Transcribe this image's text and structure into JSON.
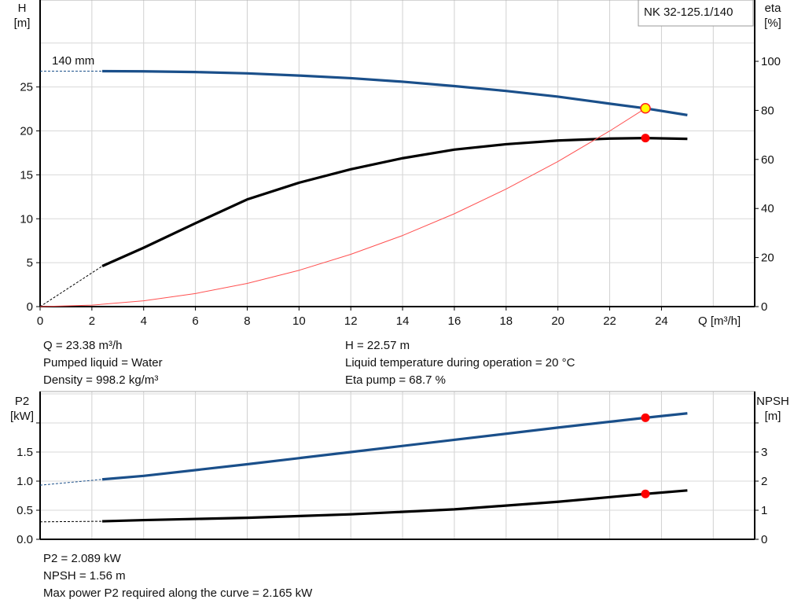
{
  "chart_data": [
    {
      "type": "line",
      "id": "head-chart",
      "title": "NK 32-125.1/140",
      "xlabel": "Q [m³/h]",
      "ylabel_left": "H\n[m]",
      "ylabel_right": "eta\n[%]",
      "xlim": [
        0,
        27.6
      ],
      "ylim_left": [
        0,
        34.9
      ],
      "ylim_right": [
        0,
        125
      ],
      "x_ticks": [
        0,
        2,
        4,
        6,
        8,
        10,
        12,
        14,
        16,
        18,
        20,
        22,
        24
      ],
      "y_ticks_left": [
        0,
        5,
        10,
        15,
        20,
        25
      ],
      "y_ticks_right": [
        0,
        20,
        40,
        60,
        80,
        100
      ],
      "grid": true,
      "curve_label": "140 mm",
      "series": [
        {
          "key": "H",
          "axis": "left",
          "color": "#1a4f8a",
          "x": [
            2.4,
            4,
            6,
            8,
            10,
            12,
            14,
            16,
            18,
            20,
            22,
            23.38,
            25
          ],
          "y": [
            26.8,
            26.78,
            26.7,
            26.55,
            26.3,
            26.0,
            25.6,
            25.1,
            24.55,
            23.9,
            23.1,
            22.57,
            21.8
          ],
          "extrapolated": {
            "x": [
              0,
              2.4
            ],
            "y": [
              26.8,
              26.8
            ]
          }
        },
        {
          "key": "eta",
          "axis": "right",
          "color": "#000000",
          "x": [
            2.4,
            4,
            6,
            8,
            10,
            12,
            14,
            16,
            18,
            20,
            22,
            23.38,
            25
          ],
          "y": [
            16.5,
            24,
            34,
            43.7,
            50.5,
            56,
            60.5,
            64,
            66.2,
            67.7,
            68.5,
            68.7,
            68.4
          ],
          "extrapolated": {
            "x": [
              0,
              2.4
            ],
            "y": [
              0,
              16.5
            ]
          }
        },
        {
          "key": "system",
          "axis": "left",
          "color": "#ff5050",
          "x": [
            0,
            2,
            4,
            6,
            8,
            10,
            12,
            14,
            16,
            18,
            20,
            22,
            23.38
          ],
          "y": [
            0,
            0.165,
            0.66,
            1.49,
            2.64,
            4.13,
            5.95,
            8.09,
            10.57,
            13.38,
            16.52,
            19.99,
            22.57
          ]
        }
      ],
      "duty_points": [
        {
          "x": 23.38,
          "y": 22.57,
          "axis": "left",
          "style": "yellow"
        },
        {
          "x": 23.38,
          "y": 68.7,
          "axis": "right",
          "style": "red"
        }
      ]
    },
    {
      "type": "line",
      "id": "power-chart",
      "ylabel_left": "P2\n[kW]",
      "ylabel_right": "NPSH\n[m]",
      "xlim": [
        0,
        27.6
      ],
      "ylim_left": [
        0,
        2.54
      ],
      "ylim_right": [
        0,
        5.08
      ],
      "y_ticks_left": [
        "0.0",
        "0.5",
        "1.0",
        "1.5"
      ],
      "y_ticks_right": [
        0,
        1,
        2,
        3
      ],
      "grid": true,
      "series": [
        {
          "key": "P2",
          "axis": "left",
          "color": "#1a4f8a",
          "x": [
            2.4,
            4,
            8,
            12,
            16,
            20,
            23.38,
            25
          ],
          "y": [
            1.03,
            1.09,
            1.29,
            1.5,
            1.71,
            1.92,
            2.089,
            2.165
          ],
          "extrapolated": {
            "x": [
              0,
              2.4
            ],
            "y": [
              0.93,
              1.03
            ]
          }
        },
        {
          "key": "NPSH",
          "axis": "right",
          "color": "#000000",
          "x": [
            2.4,
            4,
            8,
            12,
            16,
            20,
            23.38,
            25
          ],
          "y": [
            0.62,
            0.66,
            0.74,
            0.86,
            1.03,
            1.29,
            1.56,
            1.68
          ],
          "extrapolated": {
            "x": [
              0,
              2.4
            ],
            "y": [
              0.6,
              0.62
            ]
          }
        }
      ],
      "duty_points": [
        {
          "x": 23.38,
          "y": 2.089,
          "axis": "left",
          "style": "red"
        },
        {
          "x": 23.38,
          "y": 1.56,
          "axis": "right",
          "style": "red"
        }
      ]
    }
  ],
  "info_top": {
    "q": "Q = 23.38 m³/h",
    "liquid": "Pumped liquid = Water",
    "density": "Density = 998.2 kg/m³",
    "h": "H = 22.57 m",
    "temp": "Liquid temperature during operation = 20 °C",
    "eta": "Eta pump = 68.7 %"
  },
  "info_bottom": {
    "p2": "P2 = 2.089 kW",
    "npsh": "NPSH = 1.56 m",
    "maxp2": "Max power P2 required along the curve = 2.165 kW"
  }
}
